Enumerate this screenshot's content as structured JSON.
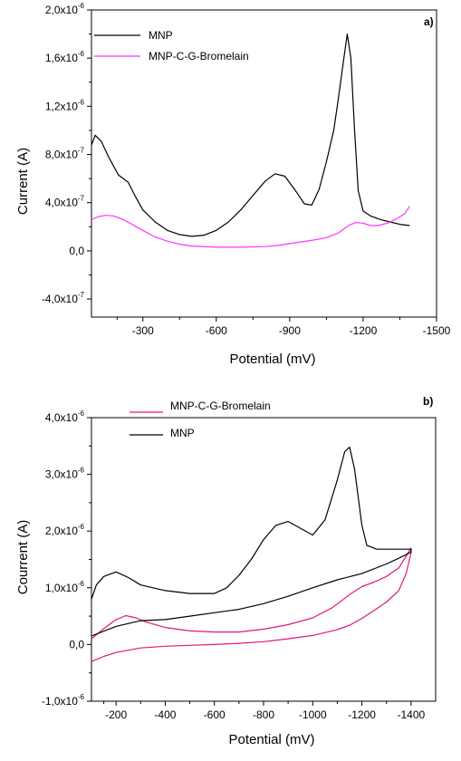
{
  "colors": {
    "mnp": "#000000",
    "bromelain_a": "#ff33ff",
    "bromelain_b": "#e0177a"
  },
  "chart_data": [
    {
      "type": "line",
      "panel_label": "a)",
      "xlabel": "Potential (mV)",
      "ylabel": "Current (A)",
      "xlim": [
        -90,
        -1500
      ],
      "ylim": [
        -5.5e-07,
        2e-06
      ],
      "x_ticks": [
        -300,
        -600,
        -900,
        -1200,
        -1500
      ],
      "x_tick_labels": [
        "-300",
        "-600",
        "-900",
        "-1200",
        "-1500"
      ],
      "y_tick_labels": [
        {
          "v": 2e-06,
          "m": "2,0x10",
          "e": "-6"
        },
        {
          "v": 1.6e-06,
          "m": "1,6x10",
          "e": "-6"
        },
        {
          "v": 1.2e-06,
          "m": "1,2x10",
          "e": "-6"
        },
        {
          "v": 8e-07,
          "m": "8,0x10",
          "e": "-7"
        },
        {
          "v": 4e-07,
          "m": "4,0x10",
          "e": "-7"
        },
        {
          "v": 0,
          "m": "0,0",
          "e": ""
        },
        {
          "v": -4e-07,
          "m": "-4,0x10",
          "e": "-7"
        }
      ],
      "legend_placement": "top-left",
      "series": [
        {
          "name": "MNP",
          "color": "#000000",
          "x": [
            -90,
            -105,
            -130,
            -160,
            -200,
            -240,
            -270,
            -300,
            -350,
            -400,
            -450,
            -500,
            -550,
            -600,
            -650,
            -700,
            -750,
            -800,
            -840,
            -880,
            -920,
            -960,
            -990,
            -1020,
            -1050,
            -1080,
            -1100,
            -1120,
            -1135,
            -1150,
            -1165,
            -1180,
            -1200,
            -1230,
            -1270,
            -1310,
            -1350,
            -1390
          ],
          "y": [
            8.8e-07,
            9.6e-07,
            9.1e-07,
            7.8e-07,
            6.3e-07,
            5.7e-07,
            4.5e-07,
            3.4e-07,
            2.4e-07,
            1.7e-07,
            1.35e-07,
            1.2e-07,
            1.3e-07,
            1.7e-07,
            2.4e-07,
            3.4e-07,
            4.6e-07,
            5.8e-07,
            6.4e-07,
            6.2e-07,
            5.1e-07,
            3.9e-07,
            3.8e-07,
            5.1e-07,
            7.4e-07,
            1e-06,
            1.28e-06,
            1.58e-06,
            1.8e-06,
            1.6e-06,
            1e-06,
            5e-07,
            3.3e-07,
            2.9e-07,
            2.6e-07,
            2.4e-07,
            2.2e-07,
            2.1e-07
          ]
        },
        {
          "name": "MNP-C-G-Bromelain",
          "color": "#ff33ff",
          "x": [
            -90,
            -120,
            -150,
            -180,
            -220,
            -260,
            -300,
            -350,
            -400,
            -450,
            -500,
            -600,
            -700,
            -800,
            -850,
            -900,
            -950,
            -1000,
            -1050,
            -1100,
            -1140,
            -1170,
            -1200,
            -1230,
            -1260,
            -1300,
            -1340,
            -1370,
            -1390
          ],
          "y": [
            2.6e-07,
            2.85e-07,
            2.95e-07,
            2.9e-07,
            2.6e-07,
            2.15e-07,
            1.7e-07,
            1.15e-07,
            8e-08,
            5.5e-08,
            4e-08,
            3e-08,
            3e-08,
            3.5e-08,
            4.5e-08,
            6e-08,
            7.5e-08,
            9e-08,
            1.1e-07,
            1.5e-07,
            2.1e-07,
            2.35e-07,
            2.3e-07,
            2.1e-07,
            2.1e-07,
            2.3e-07,
            2.7e-07,
            3.1e-07,
            3.7e-07
          ]
        }
      ]
    },
    {
      "type": "line",
      "panel_label": "b)",
      "xlabel": "Potential (mV)",
      "ylabel": "Courrent (A)",
      "xlim": [
        -100,
        -1500
      ],
      "ylim": [
        -1e-06,
        4e-06
      ],
      "x_ticks": [
        -200,
        -400,
        -600,
        -800,
        -1000,
        -1200,
        -1400
      ],
      "x_tick_labels": [
        "-200",
        "-400",
        "-600",
        "-800",
        "-1000",
        "-1200",
        "-1400"
      ],
      "y_tick_labels": [
        {
          "v": 4e-06,
          "m": "4,0x10",
          "e": "-6"
        },
        {
          "v": 3e-06,
          "m": "3,0x10",
          "e": "-6"
        },
        {
          "v": 2e-06,
          "m": "2,0x10",
          "e": "-6"
        },
        {
          "v": 1e-06,
          "m": "1,0x10",
          "e": "-6"
        },
        {
          "v": 0,
          "m": "0,0",
          "e": ""
        },
        {
          "v": -1e-06,
          "m": "-1,0x10",
          "e": "-6"
        }
      ],
      "legend_placement": "top-left",
      "series": [
        {
          "name": "MNP-C-G-Bromelain",
          "color": "#e0177a",
          "x": [
            -100,
            -150,
            -200,
            -240,
            -280,
            -320,
            -400,
            -500,
            -600,
            -700,
            -800,
            -900,
            -1000,
            -1080,
            -1150,
            -1200,
            -1250,
            -1300,
            -1350,
            -1400,
            -1400,
            -1380,
            -1350,
            -1300,
            -1250,
            -1200,
            -1150,
            -1100,
            -1000,
            -900,
            -800,
            -700,
            -600,
            -500,
            -400,
            -300,
            -200,
            -150,
            -100
          ],
          "y": [
            1e-07,
            2.8e-07,
            4.4e-07,
            5.1e-07,
            4.7e-07,
            4e-07,
            3e-07,
            2.4e-07,
            2.2e-07,
            2.2e-07,
            2.7e-07,
            3.5e-07,
            4.7e-07,
            6.5e-07,
            8.8e-07,
            1.02e-06,
            1.1e-06,
            1.2e-06,
            1.35e-06,
            1.7e-06,
            1.62e-06,
            1.25e-06,
            9.5e-07,
            7.5e-07,
            6e-07,
            4.6e-07,
            3.4e-07,
            2.6e-07,
            1.6e-07,
            1e-07,
            5e-08,
            2e-08,
            0,
            -1.5e-08,
            -3e-08,
            -6e-08,
            -1.4e-07,
            -2.1e-07,
            -3e-07
          ]
        },
        {
          "name": "MNP",
          "color": "#000000",
          "x": [
            -100,
            -120,
            -150,
            -200,
            -250,
            -300,
            -400,
            -500,
            -600,
            -650,
            -700,
            -750,
            -800,
            -850,
            -900,
            -950,
            -1000,
            -1050,
            -1100,
            -1130,
            -1150,
            -1170,
            -1200,
            -1220,
            -1260,
            -1300,
            -1350,
            -1400,
            -1400,
            -1350,
            -1300,
            -1200,
            -1100,
            -1000,
            -900,
            -800,
            -700,
            -600,
            -500,
            -400,
            -300,
            -200,
            -100
          ],
          "y": [
            8e-07,
            1.05e-06,
            1.2e-06,
            1.28e-06,
            1.18e-06,
            1.05e-06,
            9.5e-07,
            9e-07,
            9e-07,
            1e-06,
            1.22e-06,
            1.5e-06,
            1.85e-06,
            2.1e-06,
            2.17e-06,
            2.05e-06,
            1.93e-06,
            2.2e-06,
            2.9e-06,
            3.4e-06,
            3.48e-06,
            3.1e-06,
            2.1e-06,
            1.75e-06,
            1.68e-06,
            1.68e-06,
            1.68e-06,
            1.68e-06,
            1.63e-06,
            1.52e-06,
            1.42e-06,
            1.25e-06,
            1.14e-06,
            1e-06,
            8.5e-07,
            7.2e-07,
            6.2e-07,
            5.6e-07,
            5e-07,
            4.4e-07,
            4.2e-07,
            3.2e-07,
            1.5e-07
          ]
        }
      ]
    }
  ]
}
